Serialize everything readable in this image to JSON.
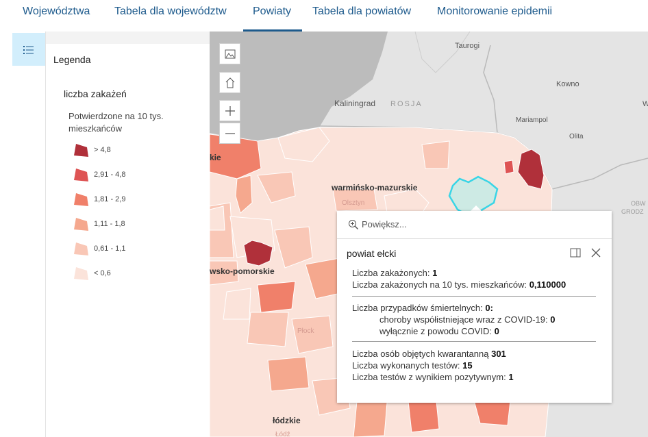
{
  "nav": {
    "tabs": [
      {
        "label": "Województwa"
      },
      {
        "label": "Tabela dla województw"
      },
      {
        "label": "Powiaty"
      },
      {
        "label": "Tabela dla powiatów"
      },
      {
        "label": "Monitorowanie epidemii"
      }
    ],
    "active_tab": "Powiaty"
  },
  "legend": {
    "title": "Legenda",
    "layer": "liczba zakażeń",
    "field": "Potwierdzone na 10 tys. mieszkańców",
    "classes": [
      {
        "label": "> 4,8",
        "color": "#b0303a"
      },
      {
        "label": "2,91 - 4,8",
        "color": "#de5454"
      },
      {
        "label": "1,81 - 2,9",
        "color": "#f0806a"
      },
      {
        "label": "1,11 - 1,8",
        "color": "#f5a88e"
      },
      {
        "label": "0,61 - 1,1",
        "color": "#f9c7b6"
      },
      {
        "label": "< 0,6",
        "color": "#fbe3da"
      }
    ]
  },
  "map": {
    "labels": {
      "taurogi": "Taurogi",
      "kowno": "Kowno",
      "kaliningrad": "Kaliningrad",
      "rosja": "ROSJA",
      "mariampol": "Mariampol",
      "olita": "Olita",
      "obw": "OBW",
      "grodz": "GRODZ",
      "warm": "warmińsko-mazurskie",
      "olsztyn": "Olsztyn",
      "kuj": "wsko-pomorskie",
      "lodzkie": "łódzkie",
      "plock": "Płock",
      "lodz": "Łódź",
      "kie": "kie",
      "w": "W"
    },
    "controls": [
      "basemap-gallery-icon",
      "home-icon",
      "zoom-in-icon",
      "zoom-out-icon"
    ]
  },
  "popup": {
    "zoom_label": "Powiększ...",
    "title": "powiat ełcki",
    "infected_label": "Liczba zakażonych:",
    "infected_value": "1",
    "per10k_label": "Liczba zakażonych na 10 tys. mieszkańców:",
    "per10k_value": "0,110000",
    "deaths_label": "Liczba przypadków śmiertelnych:",
    "deaths_value": "0:",
    "comorb_label": "choroby współistniejące wraz z COVID-19:",
    "comorb_value": "0",
    "covid_only_label": "wyłącznie z powodu COVID:",
    "covid_only_value": "0",
    "quarantine_label": "Liczba osób objętych kwarantanną",
    "quarantine_value": "301",
    "tests_label": "Liczba wykonanych testów:",
    "tests_value": "15",
    "positive_label": "Liczba testów z wynikiem pozytywnym:",
    "positive_value": "1"
  }
}
